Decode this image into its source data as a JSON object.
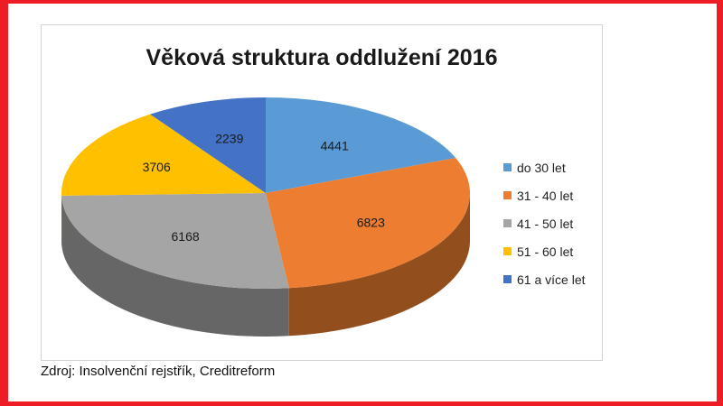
{
  "chart_data": {
    "type": "pie",
    "title": "Věková struktura oddlužení 2016",
    "categories": [
      "do 30 let",
      "31 - 40 let",
      "41 - 50 let",
      "51 - 60 let",
      "61 a více let"
    ],
    "values": [
      4441,
      6823,
      6168,
      3706,
      2239
    ],
    "colors": [
      "#5b9bd5",
      "#ed7d31",
      "#a5a5a5",
      "#ffc000",
      "#4472c4"
    ],
    "data_labels": [
      "4441",
      "6823",
      "6168",
      "3706",
      "2239"
    ],
    "three_d": true,
    "legend_position": "right"
  },
  "source": "Zdroj: Insolvenční rejstřík, Creditreform"
}
